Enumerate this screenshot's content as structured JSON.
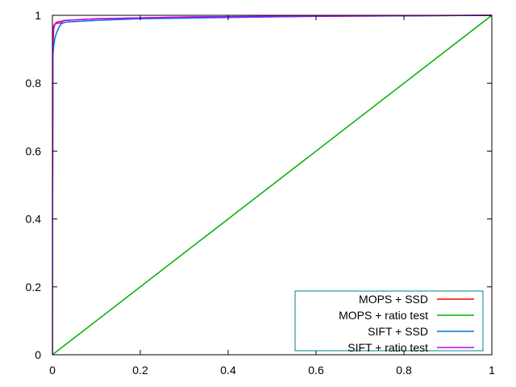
{
  "chart_data": {
    "type": "line",
    "title": "",
    "xlabel": "",
    "ylabel": "",
    "xlim": [
      0,
      1
    ],
    "ylim": [
      0,
      1
    ],
    "x_ticks": [
      "0",
      "0.2",
      "0.4",
      "0.6",
      "0.8",
      "1"
    ],
    "y_ticks": [
      "0",
      "0.2",
      "0.4",
      "0.6",
      "0.8",
      "1"
    ],
    "grid": false,
    "legend_position": "bottom-right",
    "series": [
      {
        "name": "MOPS + SSD",
        "color": "#ff0000",
        "points": [
          [
            0,
            0
          ],
          [
            0.001,
            0.9
          ],
          [
            0.003,
            0.96
          ],
          [
            0.006,
            0.975
          ],
          [
            0.01,
            0.98
          ],
          [
            0.03,
            0.985
          ],
          [
            0.1,
            0.99
          ],
          [
            0.3,
            0.995
          ],
          [
            0.6,
            0.997
          ],
          [
            1,
            1
          ]
        ]
      },
      {
        "name": "MOPS + ratio test",
        "color": "#00b000",
        "points": [
          [
            0,
            0
          ],
          [
            1,
            1
          ]
        ]
      },
      {
        "name": "SIFT + SSD",
        "color": "#0070e0",
        "points": [
          [
            0,
            0
          ],
          [
            0.001,
            0.88
          ],
          [
            0.003,
            0.91
          ],
          [
            0.006,
            0.935
          ],
          [
            0.01,
            0.95
          ],
          [
            0.015,
            0.965
          ],
          [
            0.02,
            0.975
          ],
          [
            0.03,
            0.98
          ],
          [
            0.1,
            0.985
          ],
          [
            0.2,
            0.99
          ],
          [
            0.48,
            0.995
          ],
          [
            0.65,
            0.998
          ],
          [
            0.73,
            0.998
          ],
          [
            1,
            1
          ]
        ]
      },
      {
        "name": "SIFT + ratio test",
        "color": "#c000ff",
        "points": [
          [
            0,
            0
          ],
          [
            0.001,
            0.95
          ],
          [
            0.003,
            0.97
          ],
          [
            0.006,
            0.975
          ],
          [
            0.02,
            0.978
          ],
          [
            0.025,
            0.985
          ],
          [
            0.1,
            0.99
          ],
          [
            0.3,
            0.995
          ],
          [
            0.6,
            0.998
          ],
          [
            1,
            1
          ]
        ]
      }
    ]
  }
}
